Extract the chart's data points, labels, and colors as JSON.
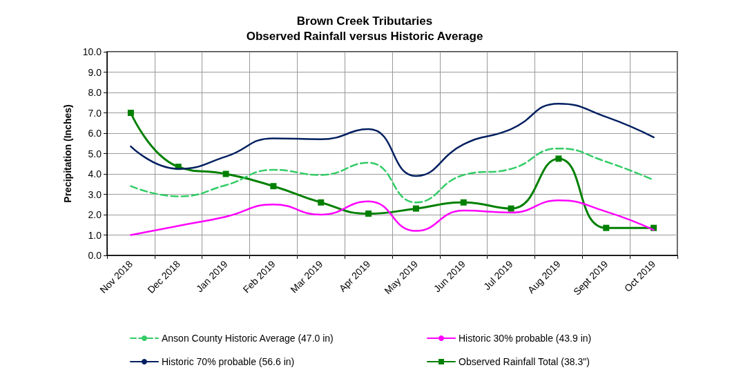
{
  "chart_data": {
    "type": "line",
    "title": "Brown Creek Tributaries\nObserved Rainfall versus Historic Average",
    "ylabel": "Precipitation (Inches)",
    "categories": [
      "Nov 2018",
      "Dec 2018",
      "Jan 2019",
      "Feb 2019",
      "Mar 2019",
      "Apr 2019",
      "May 2019",
      "Jun 2019",
      "Jul 2019",
      "Aug 2019",
      "Sept 2019",
      "Oct 2019"
    ],
    "series": [
      {
        "name": "Anson County Historic Average (47.0 in)",
        "color": "#33cc66",
        "line_style": "dashed",
        "marker": "none",
        "values": [
          3.4,
          2.9,
          3.45,
          4.2,
          3.95,
          4.55,
          2.6,
          3.95,
          4.25,
          5.25,
          4.6,
          3.7
        ]
      },
      {
        "name": "Historic 30% probable (43.9 in)",
        "color": "#ff00ff",
        "line_style": "solid",
        "marker": "none",
        "values": [
          1.0,
          1.45,
          1.9,
          2.5,
          2.0,
          2.65,
          1.2,
          2.2,
          2.1,
          2.7,
          2.15,
          1.25
        ]
      },
      {
        "name": "Historic 70% probable (56.6 in)",
        "color": "#001f5f",
        "line_style": "solid",
        "marker": "none",
        "values": [
          5.35,
          4.25,
          4.85,
          5.75,
          5.7,
          6.2,
          3.9,
          5.45,
          6.2,
          7.45,
          6.8,
          5.8
        ]
      },
      {
        "name": "Observed Rainfall Total (38.3\")",
        "color": "#008000",
        "line_style": "solid",
        "marker": "square",
        "values": [
          7.0,
          4.35,
          4.0,
          3.4,
          2.6,
          2.05,
          2.3,
          2.6,
          2.3,
          4.75,
          1.35,
          1.35
        ]
      }
    ],
    "ylim": [
      0,
      10
    ],
    "yticks": [
      {
        "value": 0,
        "label": "0.0"
      },
      {
        "value": 1,
        "label": "1.0"
      },
      {
        "value": 2,
        "label": "2.0"
      },
      {
        "value": 3,
        "label": "3.0"
      },
      {
        "value": 4,
        "label": "4.0"
      },
      {
        "value": 5,
        "label": "5.0"
      },
      {
        "value": 6,
        "label": "6.0"
      },
      {
        "value": 7,
        "label": "7.0"
      },
      {
        "value": 8,
        "label": "8.0"
      },
      {
        "value": 9,
        "label": "9.0"
      },
      {
        "value": 10,
        "label": "10.0"
      }
    ],
    "grid": true,
    "legend": "bottom"
  }
}
